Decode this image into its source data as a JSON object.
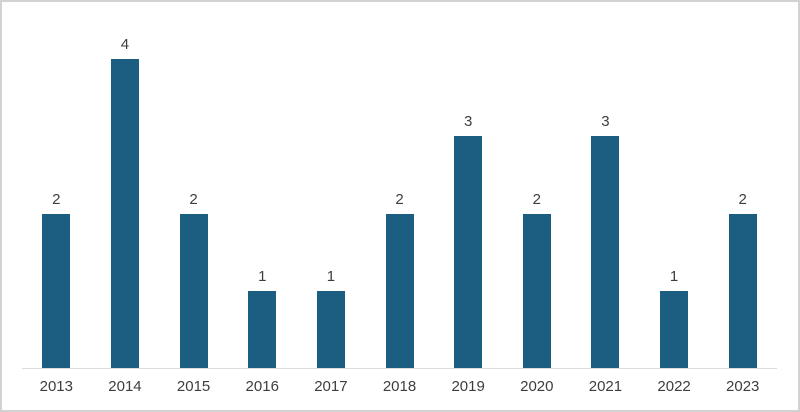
{
  "chart_data": {
    "type": "bar",
    "title": "",
    "xlabel": "",
    "ylabel": "",
    "categories": [
      "2013",
      "2014",
      "2015",
      "2016",
      "2017",
      "2018",
      "2019",
      "2020",
      "2021",
      "2022",
      "2023"
    ],
    "values": [
      2,
      4,
      2,
      1,
      1,
      2,
      3,
      2,
      3,
      1,
      2
    ],
    "ylim": [
      0,
      4
    ],
    "grid": false,
    "legend_position": "none",
    "data_labels_shown": true,
    "colors": {
      "bar": "#1b5e81",
      "axis_line": "#dcdcdc",
      "label_text": "#3d3d3d",
      "background": "#ffffff",
      "frame_border": "#d2d2d2"
    }
  }
}
